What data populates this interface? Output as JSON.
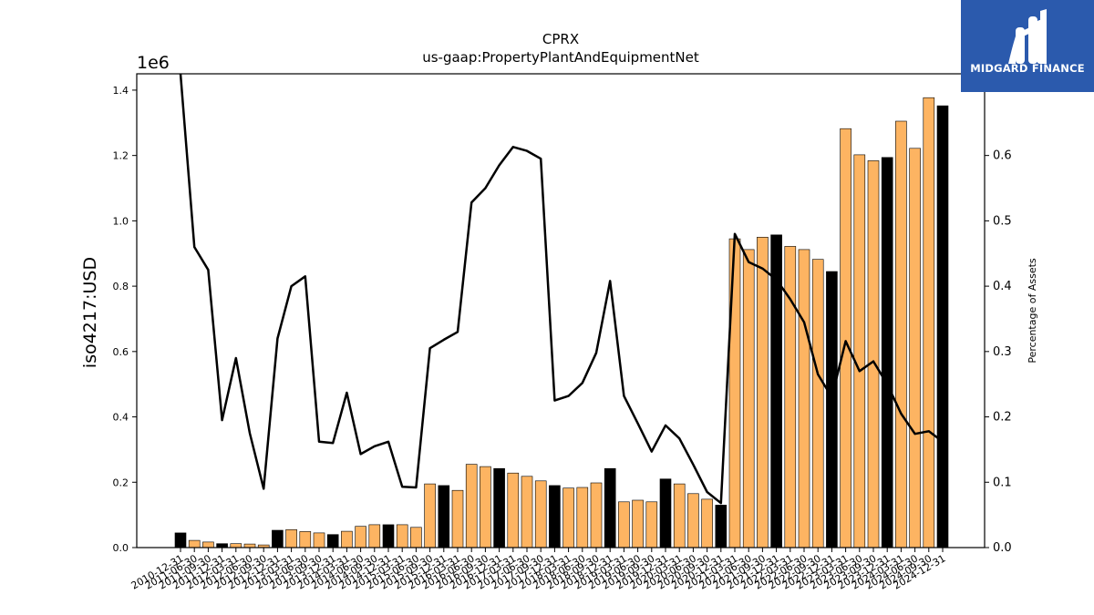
{
  "brand": {
    "name": "MIDGARD FINANCE",
    "color": "#2b5aad"
  },
  "chart_data": {
    "type": "bar",
    "title": "CPRX",
    "subtitle": "us-gaap:PropertyPlantAndEquipmentNet",
    "ylabel": "iso4217:USD",
    "y_multiplier": "1e6",
    "ylabel_right": "Percentage of Assets",
    "ylim": [
      0,
      1450000
    ],
    "ylim_right": [
      0,
      0.725
    ],
    "yticks": [
      "0.0",
      "0.2",
      "0.4",
      "0.6",
      "0.8",
      "1.0",
      "1.2",
      "1.4"
    ],
    "yticks_right": [
      "0.0",
      "0.1",
      "0.2",
      "0.3",
      "0.4",
      "0.5",
      "0.6"
    ],
    "grid": false,
    "colors": {
      "quarterly": "#fdb462",
      "annual": "#000000",
      "line": "#000000"
    },
    "categories": [
      "2010-12-31",
      "2011-06-30",
      "2011-09-30",
      "2011-12-31",
      "2012-03-31",
      "2012-06-30",
      "2012-09-30",
      "2012-12-31",
      "2013-03-31",
      "2013-06-30",
      "2013-09-30",
      "2013-12-31",
      "2014-03-31",
      "2014-06-30",
      "2014-09-30",
      "2014-12-31",
      "2015-03-31",
      "2015-06-30",
      "2015-09-30",
      "2015-12-31",
      "2016-03-31",
      "2016-06-30",
      "2016-09-30",
      "2016-12-31",
      "2017-03-31",
      "2017-06-30",
      "2017-09-30",
      "2017-12-31",
      "2018-03-31",
      "2018-06-30",
      "2018-09-30",
      "2018-12-31",
      "2019-03-31",
      "2019-06-30",
      "2019-09-30",
      "2019-12-31",
      "2020-03-31",
      "2020-06-30",
      "2020-09-30",
      "2020-12-31",
      "2021-03-31",
      "2021-06-30",
      "2021-09-30",
      "2021-12-31",
      "2022-03-31",
      "2022-06-30",
      "2022-09-30",
      "2022-12-31",
      "2023-03-31",
      "2023-06-30",
      "2023-09-30",
      "2023-12-31",
      "2024-03-31",
      "2024-06-30",
      "2024-09-30",
      "2024-12-31"
    ],
    "series": [
      {
        "kind": "bar",
        "values": [
          45000,
          22000,
          17000,
          12000,
          12000,
          11000,
          8000,
          53000,
          55000,
          49000,
          45000,
          40000,
          50000,
          65000,
          70000,
          70000,
          70000,
          62000,
          195000,
          190000,
          175000,
          255000,
          248000,
          242000,
          228000,
          218000,
          204000,
          190000,
          182000,
          184000,
          198000,
          242000,
          140000,
          145000,
          140000,
          210000,
          195000,
          165000,
          148000,
          130000,
          945000,
          912000,
          950000,
          957000,
          922000,
          912000,
          882000,
          845000,
          1282000,
          1202000,
          1184000,
          1194000,
          1305000,
          1222000,
          1377000,
          1352000
        ],
        "annual": [
          true,
          false,
          false,
          true,
          false,
          false,
          false,
          true,
          false,
          false,
          false,
          true,
          false,
          false,
          false,
          true,
          false,
          false,
          false,
          true,
          false,
          false,
          false,
          true,
          false,
          false,
          false,
          true,
          false,
          false,
          false,
          true,
          false,
          false,
          false,
          true,
          false,
          false,
          false,
          true,
          false,
          false,
          false,
          true,
          false,
          false,
          false,
          true,
          false,
          false,
          false,
          true,
          false,
          false,
          false,
          true
        ]
      },
      {
        "kind": "line",
        "axis": "right",
        "values": [
          0.725,
          0.46,
          0.425,
          0.195,
          0.29,
          0.175,
          0.09,
          0.32,
          0.4,
          0.415,
          0.162,
          0.16,
          0.237,
          0.143,
          0.155,
          0.162,
          0.093,
          0.092,
          0.305,
          0.318,
          0.33,
          0.528,
          0.55,
          0.585,
          0.613,
          0.607,
          0.595,
          0.225,
          0.232,
          0.252,
          0.298,
          0.408,
          0.232,
          0.19,
          0.147,
          0.187,
          0.167,
          0.127,
          0.085,
          0.068,
          0.48,
          0.437,
          0.427,
          0.41,
          0.38,
          0.345,
          0.265,
          0.23,
          0.316,
          0.27,
          0.285,
          0.25,
          0.205,
          0.174,
          0.178,
          0.162
        ]
      }
    ]
  }
}
